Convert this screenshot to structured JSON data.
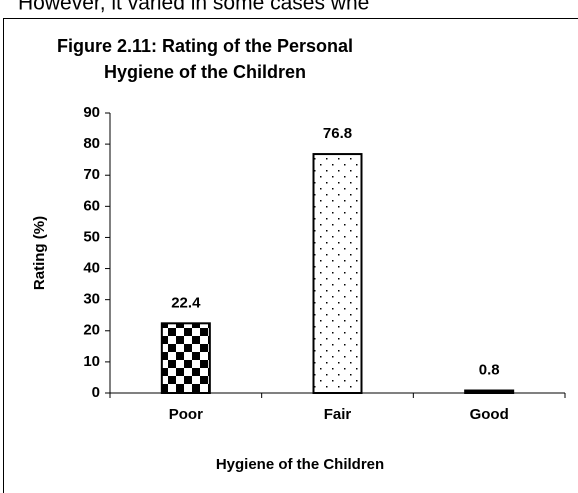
{
  "page_text": "However, it varied in some cases whe",
  "chart_data": {
    "type": "bar",
    "title": [
      "Figure 2.11: Rating of the Personal",
      "Hygiene of the Children"
    ],
    "x_label": "Hygiene of the Children",
    "y_label": "Rating (%)",
    "categories": [
      "Poor",
      "Fair",
      "Good"
    ],
    "values": [
      22.4,
      76.8,
      0.8
    ],
    "patterns": [
      "checker",
      "dots",
      "solid"
    ],
    "color": "#000000",
    "ylim": [
      0,
      90
    ],
    "yticks": [
      0,
      10,
      20,
      30,
      40,
      50,
      60,
      70,
      80,
      90
    ]
  }
}
